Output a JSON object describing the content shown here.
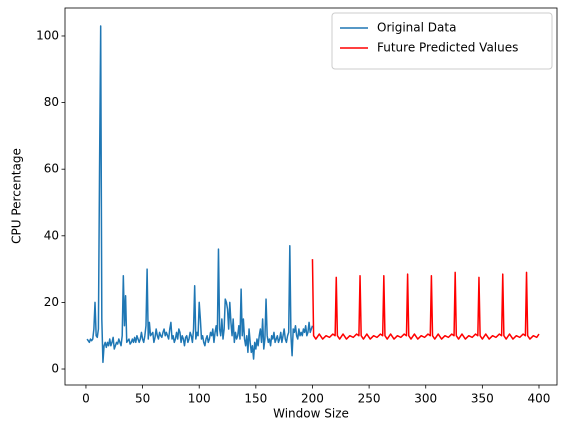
{
  "chart_data": {
    "type": "line",
    "xlabel": "Window Size",
    "ylabel": "CPU Percentage",
    "xlim": [
      -18.5,
      415.9
    ],
    "xticks": [
      0,
      50,
      100,
      150,
      200,
      250,
      300,
      350,
      400
    ],
    "ylim": [
      -4.8,
      108.4
    ],
    "yticks": [
      0,
      20,
      40,
      60,
      80,
      100
    ],
    "legend": "upper right",
    "grid": false,
    "series": [
      {
        "name": "Original Data",
        "color": "#1f77b4",
        "x": [
          1,
          2,
          3,
          4,
          5,
          6,
          7,
          8,
          9,
          10,
          11,
          12,
          13,
          14,
          15,
          16,
          17,
          18,
          19,
          20,
          21,
          22,
          23,
          24,
          25,
          26,
          27,
          28,
          29,
          30,
          31,
          32,
          33,
          34,
          35,
          36,
          37,
          38,
          39,
          40,
          41,
          42,
          43,
          44,
          45,
          46,
          47,
          48,
          49,
          50,
          51,
          52,
          53,
          54,
          55,
          56,
          57,
          58,
          59,
          60,
          61,
          62,
          63,
          64,
          65,
          66,
          67,
          68,
          69,
          70,
          71,
          72,
          73,
          74,
          75,
          76,
          77,
          78,
          79,
          80,
          81,
          82,
          83,
          84,
          85,
          86,
          87,
          88,
          89,
          90,
          91,
          92,
          93,
          94,
          95,
          96,
          97,
          98,
          99,
          100,
          101,
          102,
          103,
          104,
          105,
          106,
          107,
          108,
          109,
          110,
          111,
          112,
          113,
          114,
          115,
          116,
          117,
          118,
          119,
          120,
          121,
          122,
          123,
          124,
          125,
          126,
          127,
          128,
          129,
          130,
          131,
          132,
          133,
          134,
          135,
          136,
          137,
          138,
          139,
          140,
          141,
          142,
          143,
          144,
          145,
          146,
          147,
          148,
          149,
          150,
          151,
          152,
          153,
          154,
          155,
          156,
          157,
          158,
          159,
          160,
          161,
          162,
          163,
          164,
          165,
          166,
          167,
          168,
          169,
          170,
          171,
          172,
          173,
          174,
          175,
          176,
          177,
          178,
          179,
          180,
          181,
          182,
          183,
          184,
          185,
          186,
          187,
          188,
          189,
          190,
          191,
          192,
          193,
          194,
          195,
          196,
          197,
          198,
          199,
          200
        ],
        "values": [
          9,
          8.5,
          8,
          9,
          8.5,
          9,
          12,
          20,
          10,
          9.5,
          12,
          60,
          103,
          15,
          2,
          7,
          8,
          6.5,
          8,
          7,
          9,
          7,
          8,
          9.5,
          6,
          7,
          8,
          7.5,
          9,
          8,
          7,
          10,
          28,
          13,
          22,
          8,
          8.5,
          9,
          7.5,
          8,
          9,
          8,
          9.5,
          8,
          10,
          9,
          8,
          9,
          11,
          9,
          8,
          10,
          13,
          30,
          9,
          14,
          10,
          10.5,
          11,
          8,
          9.5,
          12,
          10,
          9,
          11,
          10,
          9.5,
          11,
          12,
          10,
          11,
          10,
          9,
          12,
          14,
          9,
          10,
          8,
          9,
          11,
          9,
          12,
          11,
          8,
          10,
          9,
          7,
          9.5,
          10,
          8,
          9,
          11,
          10,
          8,
          12,
          25,
          9,
          11,
          10,
          20,
          15,
          9,
          10,
          8,
          7,
          9,
          10,
          8,
          9,
          11,
          10,
          12,
          8,
          11,
          13,
          10,
          36,
          12,
          10,
          15,
          9,
          12,
          21,
          20,
          18,
          12,
          20,
          14,
          10,
          15,
          8,
          11,
          9,
          10,
          13,
          9,
          24,
          10,
          15,
          9,
          7,
          10,
          5,
          12,
          8,
          5,
          7,
          3,
          8,
          6,
          9,
          7,
          10,
          12,
          8,
          15,
          6,
          9,
          21,
          10,
          8,
          9,
          7,
          10,
          9,
          11,
          8,
          9,
          10,
          8,
          9,
          11,
          8,
          10,
          12,
          9,
          8,
          10,
          11,
          37,
          10,
          4,
          12,
          11,
          13,
          10,
          9,
          12,
          10,
          11,
          10,
          12,
          11,
          13,
          10,
          11,
          14,
          11,
          12,
          13
        ]
      },
      {
        "name": "Future Predicted Values",
        "color": "#ff0000",
        "x": [
          200,
          201,
          203,
          206,
          209,
          212,
          215,
          218,
          220,
          221,
          222,
          224,
          227,
          230,
          233,
          236,
          239,
          241,
          242,
          243,
          245,
          248,
          251,
          254,
          257,
          260,
          262,
          263,
          264,
          266,
          269,
          272,
          275,
          278,
          281,
          283,
          284,
          285,
          287,
          290,
          293,
          296,
          299,
          302,
          304,
          305,
          306,
          308,
          311,
          314,
          317,
          320,
          323,
          325,
          326,
          327,
          329,
          332,
          335,
          338,
          341,
          344,
          346,
          347,
          348,
          350,
          353,
          356,
          359,
          362,
          365,
          367,
          368,
          369,
          371,
          374,
          377,
          380,
          383,
          386,
          388,
          389,
          390,
          392,
          395,
          398,
          400
        ],
        "values": [
          33,
          10,
          9,
          10.5,
          9,
          10,
          9.5,
          10.5,
          10,
          27.5,
          10,
          9,
          10.5,
          9,
          10,
          9.5,
          10.5,
          10,
          28,
          10,
          9,
          10.5,
          9,
          10,
          9.5,
          10.5,
          10,
          28,
          10,
          9,
          10.5,
          9,
          10,
          9.5,
          10.5,
          10,
          28.5,
          10,
          9,
          10.5,
          9,
          10,
          9.5,
          10.5,
          10,
          28,
          10,
          9,
          10.5,
          9,
          10,
          9.5,
          10.5,
          10,
          29,
          10,
          9,
          10.5,
          9,
          10,
          9.5,
          10.5,
          10,
          27.5,
          10,
          9,
          10.5,
          9,
          10,
          9.5,
          10.5,
          10,
          28.5,
          10,
          9,
          10.5,
          9,
          10,
          9.5,
          10.5,
          10,
          29,
          10,
          9,
          10,
          9.5,
          10.5
        ]
      }
    ]
  }
}
